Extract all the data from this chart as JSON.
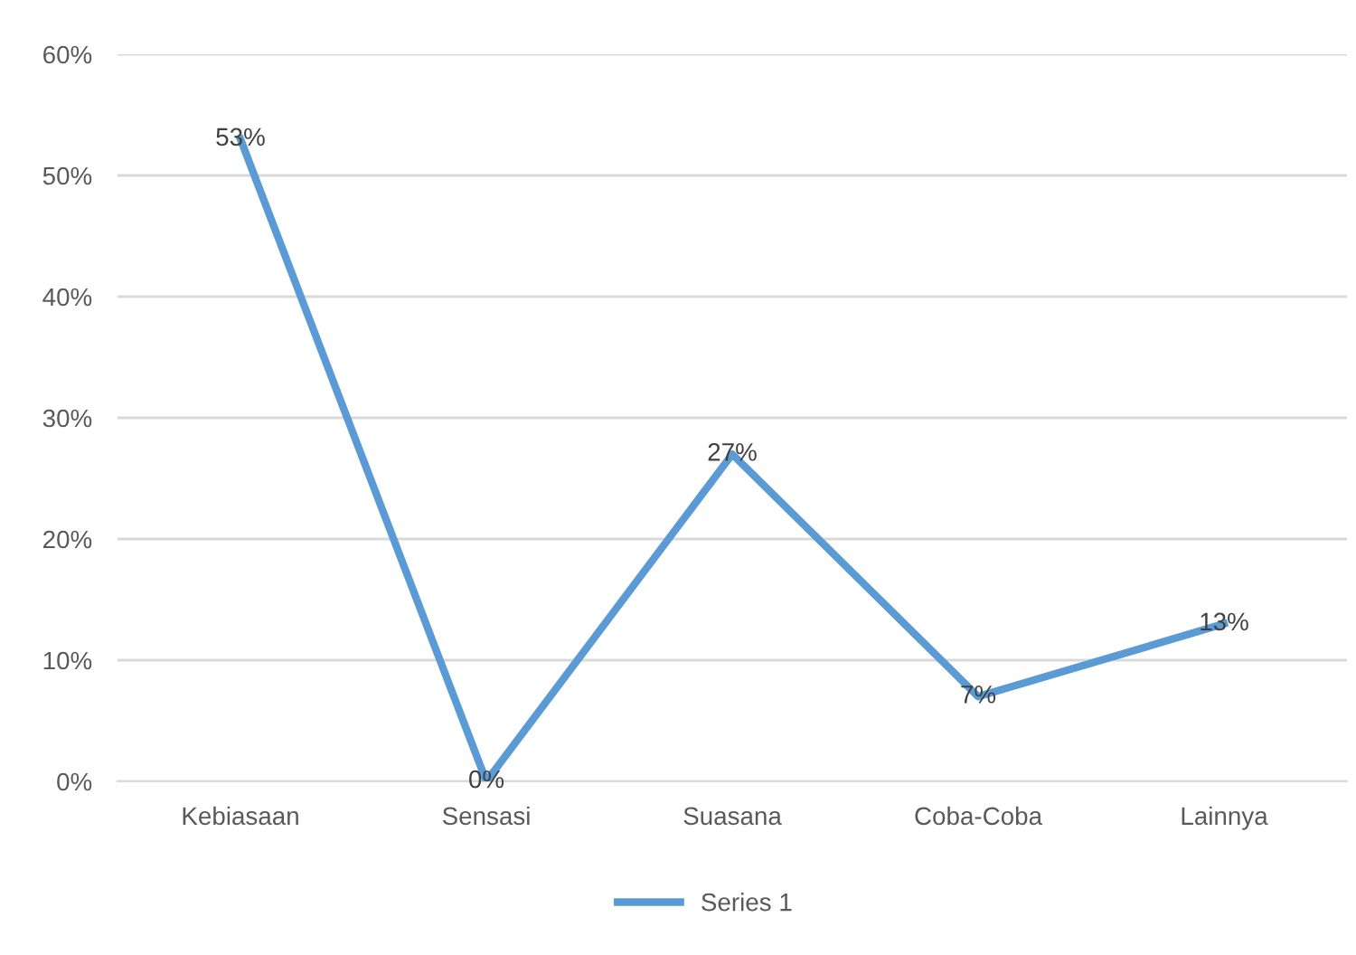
{
  "chart_data": {
    "type": "line",
    "categories": [
      "Kebiasaan",
      "Sensasi",
      "Suasana",
      "Coba-Coba",
      "Lainnya"
    ],
    "series": [
      {
        "name": "Series 1",
        "color": "#5b9bd5",
        "values": [
          53,
          0,
          27,
          7,
          13
        ],
        "value_labels": [
          "53%",
          "0%",
          "27%",
          "7%",
          "13%"
        ]
      }
    ],
    "ylim": [
      0,
      60
    ],
    "yticks": [
      {
        "value": 0,
        "label": "0%"
      },
      {
        "value": 10,
        "label": "10%"
      },
      {
        "value": 20,
        "label": "20%"
      },
      {
        "value": 30,
        "label": "30%"
      },
      {
        "value": 40,
        "label": "40%"
      },
      {
        "value": 50,
        "label": "50%"
      },
      {
        "value": 60,
        "label": "60%"
      }
    ],
    "grid": "y",
    "legend": "bottom",
    "marker": "none",
    "line_style": "solid"
  }
}
